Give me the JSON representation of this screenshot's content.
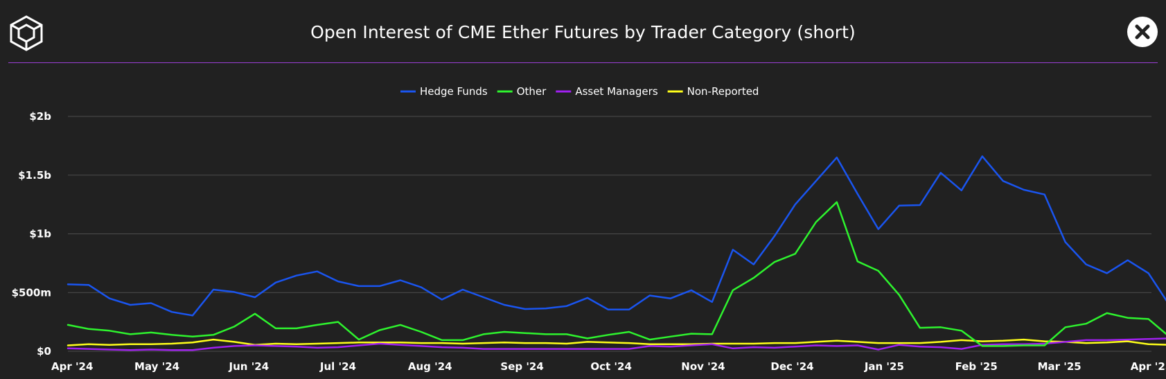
{
  "header": {
    "title": "Open Interest of CME Ether Futures by Trader Category (short)"
  },
  "icons": {
    "logo": "cube-logo-icon",
    "close": "close-icon"
  },
  "colors": {
    "background": "#212121",
    "divider": "#9b3fd6",
    "grid": "#4d4d4d",
    "hedge_funds": "#1a55f0",
    "other": "#2ef42e",
    "asset_managers": "#a020f0",
    "non_reported": "#ffff1a"
  },
  "chart_data": {
    "type": "line",
    "title": "Open Interest of CME Ether Futures by Trader Category (short)",
    "xlabel": "",
    "ylabel": "",
    "ylim": [
      0,
      2000000000
    ],
    "y_ticks": [
      {
        "value": 0,
        "label": "$0"
      },
      {
        "value": 500000000,
        "label": "$500m"
      },
      {
        "value": 1000000000,
        "label": "$1b"
      },
      {
        "value": 1500000000,
        "label": "$1.5b"
      },
      {
        "value": 2000000000,
        "label": "$2b"
      }
    ],
    "x_ticks": [
      {
        "date": "2024-04-01",
        "label": "Apr '24"
      },
      {
        "date": "2024-05-01",
        "label": "May '24"
      },
      {
        "date": "2024-06-01",
        "label": "Jun '24"
      },
      {
        "date": "2024-07-01",
        "label": "Jul '24"
      },
      {
        "date": "2024-08-01",
        "label": "Aug '24"
      },
      {
        "date": "2024-09-01",
        "label": "Sep '24"
      },
      {
        "date": "2024-10-01",
        "label": "Oct '24"
      },
      {
        "date": "2024-11-01",
        "label": "Nov '24"
      },
      {
        "date": "2024-12-01",
        "label": "Dec '24"
      },
      {
        "date": "2025-01-01",
        "label": "Jan '25"
      },
      {
        "date": "2025-02-01",
        "label": "Feb '25"
      },
      {
        "date": "2025-03-01",
        "label": "Mar '25"
      },
      {
        "date": "2025-04-01",
        "label": "Apr '25"
      }
    ],
    "grid": true,
    "legend_position": "top-center",
    "x": [
      "2024-04-01",
      "2024-04-08",
      "2024-04-15",
      "2024-04-22",
      "2024-04-29",
      "2024-05-06",
      "2024-05-13",
      "2024-05-20",
      "2024-05-27",
      "2024-06-03",
      "2024-06-10",
      "2024-06-17",
      "2024-06-24",
      "2024-07-01",
      "2024-07-08",
      "2024-07-15",
      "2024-07-22",
      "2024-07-29",
      "2024-08-05",
      "2024-08-12",
      "2024-08-19",
      "2024-08-26",
      "2024-09-02",
      "2024-09-09",
      "2024-09-16",
      "2024-09-23",
      "2024-09-30",
      "2024-10-07",
      "2024-10-14",
      "2024-10-21",
      "2024-10-28",
      "2024-11-04",
      "2024-11-11",
      "2024-11-18",
      "2024-11-25",
      "2024-12-02",
      "2024-12-09",
      "2024-12-16",
      "2024-12-23",
      "2024-12-30",
      "2025-01-06",
      "2025-01-13",
      "2025-01-20",
      "2025-01-27",
      "2025-02-03",
      "2025-02-10",
      "2025-02-17",
      "2025-02-24",
      "2025-03-03",
      "2025-03-10",
      "2025-03-17",
      "2025-03-24",
      "2025-03-31",
      "2025-04-07"
    ],
    "series": [
      {
        "name": "Hedge Funds",
        "values": [
          570000000,
          565000000,
          450000000,
          395000000,
          410000000,
          335000000,
          305000000,
          525000000,
          505000000,
          460000000,
          585000000,
          645000000,
          680000000,
          595000000,
          555000000,
          555000000,
          605000000,
          545000000,
          440000000,
          525000000,
          460000000,
          395000000,
          360000000,
          365000000,
          385000000,
          455000000,
          355000000,
          355000000,
          475000000,
          450000000,
          520000000,
          420000000,
          865000000,
          740000000,
          980000000,
          1250000000,
          1450000000,
          1650000000,
          1340000000,
          1040000000,
          1240000000,
          1245000000,
          1520000000,
          1370000000,
          1660000000,
          1450000000,
          1375000000,
          1335000000,
          930000000,
          740000000,
          665000000,
          775000000,
          665000000,
          395000000
        ]
      },
      {
        "name": "Other",
        "values": [
          225000000,
          190000000,
          175000000,
          145000000,
          160000000,
          140000000,
          125000000,
          140000000,
          210000000,
          320000000,
          195000000,
          195000000,
          225000000,
          250000000,
          100000000,
          180000000,
          225000000,
          165000000,
          95000000,
          95000000,
          145000000,
          165000000,
          155000000,
          145000000,
          145000000,
          110000000,
          140000000,
          165000000,
          100000000,
          125000000,
          150000000,
          145000000,
          520000000,
          625000000,
          760000000,
          830000000,
          1100000000,
          1270000000,
          765000000,
          685000000,
          480000000,
          200000000,
          205000000,
          175000000,
          45000000,
          45000000,
          50000000,
          50000000,
          205000000,
          235000000,
          325000000,
          285000000,
          275000000,
          125000000
        ]
      },
      {
        "name": "Asset Managers",
        "values": [
          25000000,
          20000000,
          15000000,
          10000000,
          15000000,
          10000000,
          10000000,
          30000000,
          45000000,
          50000000,
          45000000,
          40000000,
          30000000,
          35000000,
          50000000,
          65000000,
          55000000,
          45000000,
          35000000,
          30000000,
          20000000,
          20000000,
          20000000,
          20000000,
          20000000,
          20000000,
          20000000,
          20000000,
          45000000,
          40000000,
          50000000,
          60000000,
          25000000,
          35000000,
          30000000,
          40000000,
          50000000,
          45000000,
          50000000,
          15000000,
          55000000,
          40000000,
          35000000,
          20000000,
          55000000,
          60000000,
          60000000,
          65000000,
          80000000,
          95000000,
          95000000,
          100000000,
          105000000,
          110000000
        ]
      },
      {
        "name": "Non-Reported",
        "values": [
          50000000,
          60000000,
          55000000,
          60000000,
          60000000,
          65000000,
          75000000,
          100000000,
          80000000,
          55000000,
          65000000,
          60000000,
          65000000,
          70000000,
          75000000,
          75000000,
          75000000,
          70000000,
          70000000,
          65000000,
          70000000,
          75000000,
          70000000,
          70000000,
          65000000,
          80000000,
          75000000,
          70000000,
          60000000,
          60000000,
          60000000,
          65000000,
          65000000,
          65000000,
          70000000,
          70000000,
          80000000,
          90000000,
          80000000,
          70000000,
          70000000,
          70000000,
          80000000,
          95000000,
          85000000,
          90000000,
          100000000,
          85000000,
          80000000,
          70000000,
          75000000,
          85000000,
          60000000,
          55000000
        ]
      }
    ]
  }
}
